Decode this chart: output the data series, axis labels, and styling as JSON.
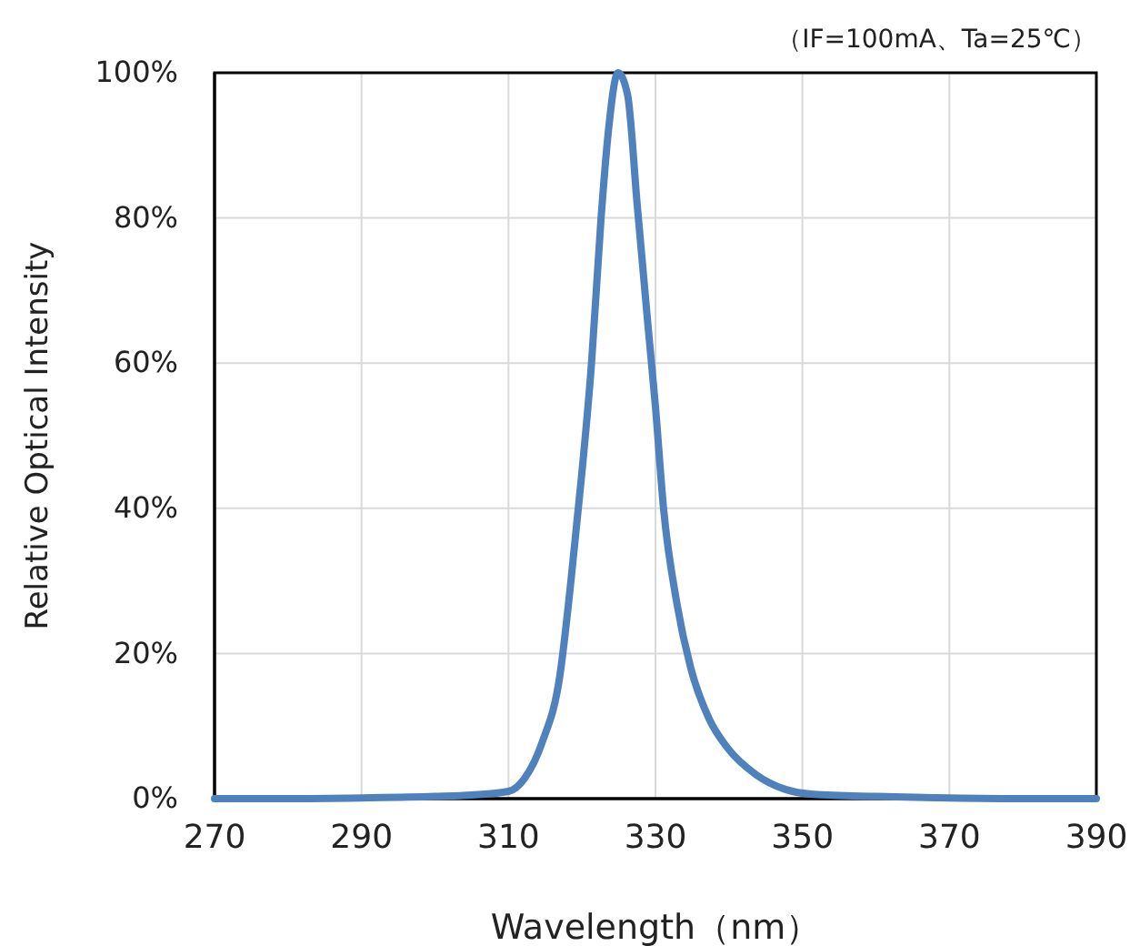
{
  "chart_data": {
    "type": "line",
    "xlabel": "Wavelength（nm）",
    "ylabel": "Relative Optical Intensity",
    "annotations": [
      "（IF=100mA、Ta=25℃）"
    ],
    "series": [
      {
        "color": "#4f81bd",
        "x": [
          270,
          280,
          290,
          300,
          305,
          310,
          312.2,
          314.6,
          317,
          318.5,
          320,
          321.3,
          322.6,
          323.6,
          324.9,
          326.2,
          327.5,
          329,
          330,
          331.1,
          332.9,
          334.8,
          337.3,
          339.8,
          343.7,
          347.6,
          351.5,
          360,
          370,
          380,
          390
        ],
        "values": [
          0,
          0,
          0.1,
          0.3,
          0.5,
          1,
          2.8,
          7.8,
          17,
          30,
          45,
          60,
          80,
          92,
          100,
          97,
          82,
          65,
          54,
          40,
          27,
          18,
          11,
          7,
          3.3,
          1.3,
          0.6,
          0.3,
          0.1,
          0,
          0
        ]
      }
    ],
    "xlim": [
      270,
      390
    ],
    "xticks": [
      270,
      290,
      310,
      330,
      350,
      370,
      390
    ],
    "ylim": [
      0,
      100
    ],
    "yticks": [
      {
        "value": 0,
        "label": "0%"
      },
      {
        "value": 20,
        "label": "20%"
      },
      {
        "value": 40,
        "label": "40%"
      },
      {
        "value": 60,
        "label": "60%"
      },
      {
        "value": 80,
        "label": "80%"
      },
      {
        "value": 100,
        "label": "100%"
      }
    ],
    "grid": true,
    "marker": "none",
    "line_style": "solid"
  }
}
